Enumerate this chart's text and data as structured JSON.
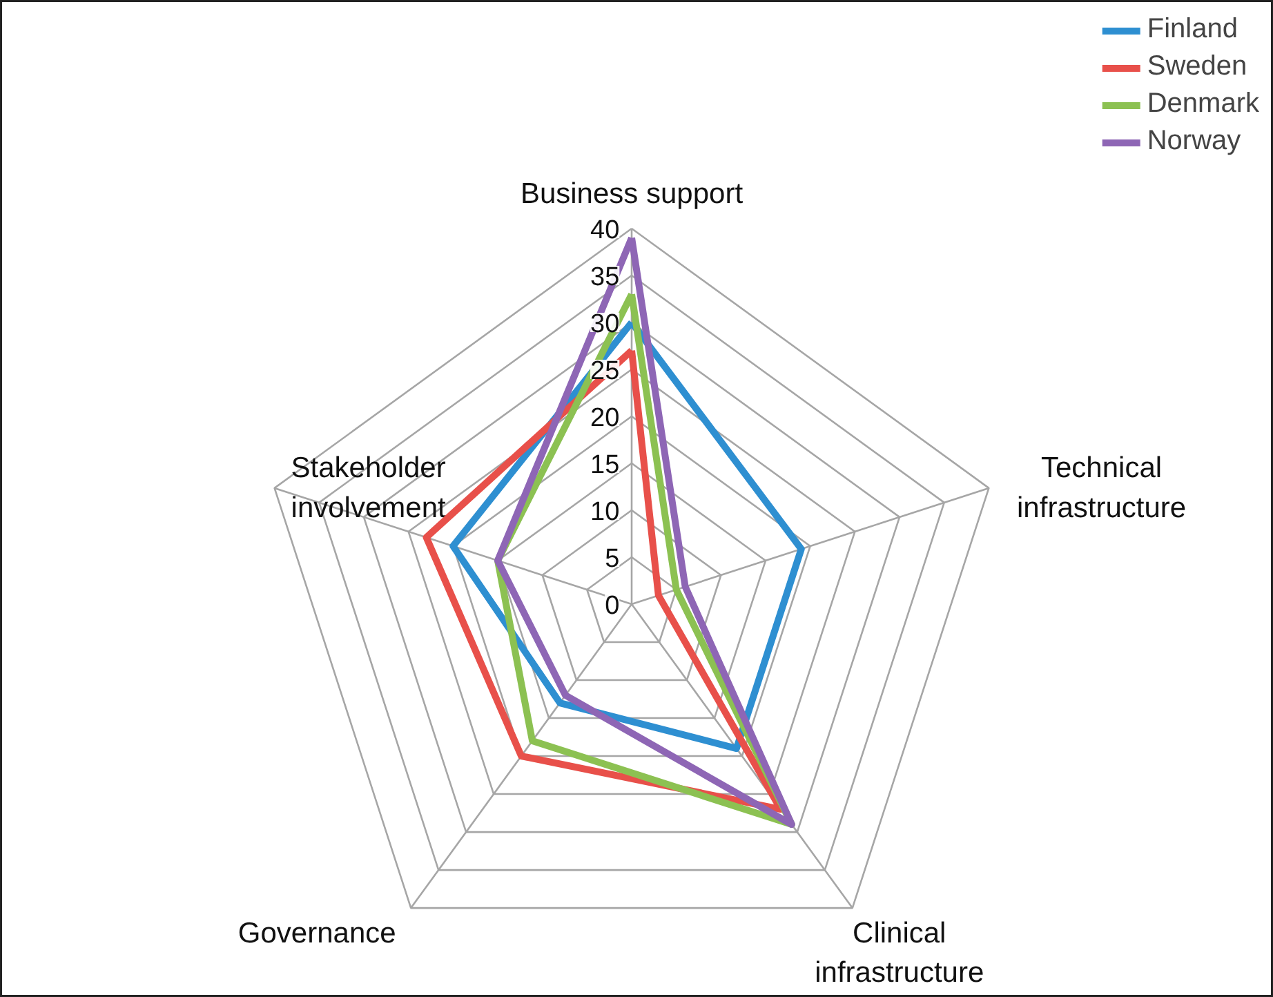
{
  "chart_data": {
    "type": "radar",
    "categories": [
      "Business support",
      "Technical infrastructure",
      "Clinical infrastructure",
      "Governance",
      "Stakeholder involvement"
    ],
    "ylim": [
      0,
      40
    ],
    "yticks": [
      0,
      5,
      10,
      15,
      20,
      25,
      30,
      35,
      40
    ],
    "grid": true,
    "legend": "top right",
    "marker": "none",
    "line_style": "solid",
    "series": [
      {
        "name": "Finland",
        "color": "#2e8fd1",
        "values": [
          30,
          19,
          19,
          13,
          20
        ]
      },
      {
        "name": "Sweden",
        "color": "#e8504a",
        "values": [
          27,
          3,
          27,
          20,
          23
        ]
      },
      {
        "name": "Denmark",
        "color": "#8cc152",
        "values": [
          33,
          5,
          29,
          18,
          15
        ]
      },
      {
        "name": "Norway",
        "color": "#8e66b5",
        "values": [
          39,
          6,
          29,
          12,
          15
        ]
      }
    ]
  }
}
